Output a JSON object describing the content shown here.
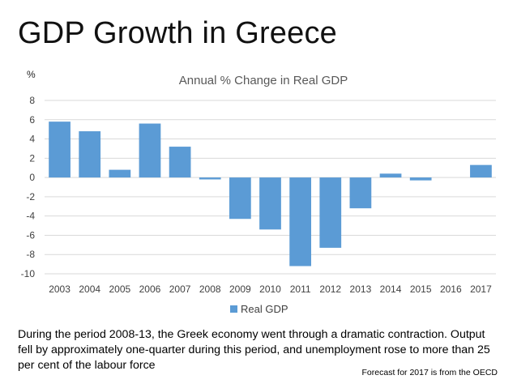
{
  "slide": {
    "title": "GDP Growth in Greece",
    "caption": "During the period 2008-13, the Greek economy went through a dramatic contraction. Output fell by approximately one-quarter during this period, and unemployment rose to more than 25 per cent of the labour force",
    "footnote": "Forecast for 2017 is from the OECD"
  },
  "colors": {
    "bar": "#5b9bd5",
    "grid": "#d9d9d9"
  },
  "chart_data": {
    "type": "bar",
    "title": "Annual % Change in Real GDP",
    "unit_label": "%",
    "xlabel": "",
    "ylabel": "%",
    "categories": [
      "2003",
      "2004",
      "2005",
      "2006",
      "2007",
      "2008",
      "2009",
      "2010",
      "2011",
      "2012",
      "2013",
      "2014",
      "2015",
      "2016",
      "2017"
    ],
    "series": [
      {
        "name": "Real GDP",
        "values": [
          5.8,
          4.8,
          0.8,
          5.6,
          3.2,
          -0.2,
          -4.3,
          -5.4,
          -9.2,
          -7.3,
          -3.2,
          0.4,
          -0.3,
          0.0,
          1.3
        ]
      }
    ],
    "yticks": [
      8,
      6,
      4,
      2,
      0,
      -2,
      -4,
      -6,
      -8,
      -10
    ],
    "ylim": [
      -10,
      8
    ],
    "grid": true,
    "legend": "bottom"
  }
}
